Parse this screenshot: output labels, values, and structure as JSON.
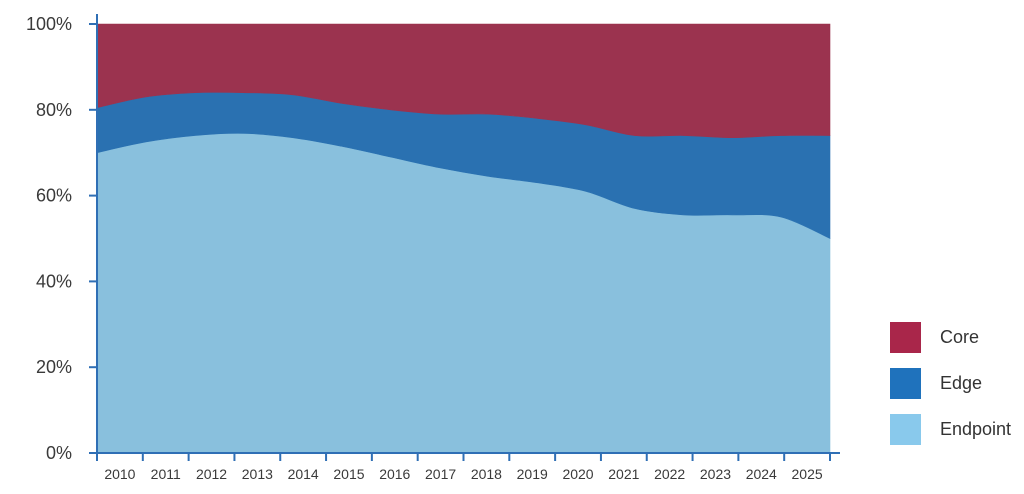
{
  "chart_data": {
    "type": "area",
    "stacked": true,
    "percent": true,
    "categories": [
      "2010",
      "2011",
      "2012",
      "2013",
      "2014",
      "2015",
      "2016",
      "2017",
      "2018",
      "2019",
      "2020",
      "2021",
      "2022",
      "2023",
      "2024",
      "2025"
    ],
    "series": [
      {
        "name": "Endpoint",
        "color": "#89c0dd",
        "values": [
          70,
          72.5,
          74,
          74.5,
          73.5,
          71.5,
          69,
          66.5,
          64.5,
          63,
          61,
          57,
          55.5,
          55.5,
          55,
          50
        ]
      },
      {
        "name": "Edge",
        "color": "#2a71b1",
        "values": [
          10.5,
          10.5,
          10,
          9.5,
          10,
          10,
          11,
          12.5,
          14.5,
          15,
          15.5,
          17,
          18.5,
          18,
          19,
          24
        ]
      },
      {
        "name": "Core",
        "color": "#9b334f",
        "values": [
          19.5,
          17,
          16,
          16,
          16.5,
          18.5,
          20,
          21,
          21,
          22,
          23.5,
          26,
          26,
          26.5,
          26,
          26
        ]
      }
    ],
    "y_ticks": [
      "0%",
      "20%",
      "40%",
      "60%",
      "80%",
      "100%"
    ],
    "ylim": [
      0,
      100
    ],
    "title": "",
    "xlabel": "",
    "ylabel": "",
    "legend_position": "bottom-right"
  },
  "legend": {
    "items": [
      {
        "name": "Core",
        "color": "#a9264a"
      },
      {
        "name": "Edge",
        "color": "#1f72bc"
      },
      {
        "name": "Endpoint",
        "color": "#89c9ec"
      }
    ]
  }
}
